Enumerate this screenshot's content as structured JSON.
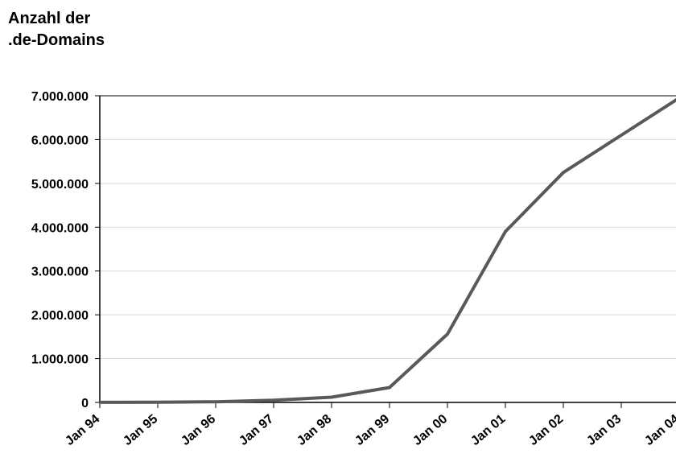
{
  "chart_data": {
    "type": "line",
    "title_lines": [
      "Anzahl der",
      ".de-Domains"
    ],
    "xlabel": "",
    "ylabel": "",
    "categories": [
      "Jan 94",
      "Jan 95",
      "Jan 96",
      "Jan 97",
      "Jan 98",
      "Jan 99",
      "Jan 00",
      "Jan 01",
      "Jan 02",
      "Jan 03",
      "Jan 04"
    ],
    "y_tick_labels": [
      "0",
      "1.000.000",
      "2.000.000",
      "3.000.000",
      "4.000.000",
      "5.000.000",
      "6.000.000",
      "7.000.000"
    ],
    "y_tick_values": [
      0,
      1000000,
      2000000,
      3000000,
      4000000,
      5000000,
      6000000,
      7000000
    ],
    "ylim": [
      0,
      7000000
    ],
    "grid": "horizontal",
    "legend": "none",
    "series": [
      {
        "values": [
          1000,
          5000,
          15000,
          50000,
          120000,
          340000,
          1560000,
          3900000,
          5250000,
          6100000,
          6950000
        ]
      }
    ],
    "colors": {
      "line": "#595959",
      "grid": "#d9d9d9",
      "axis": "#000000"
    }
  }
}
